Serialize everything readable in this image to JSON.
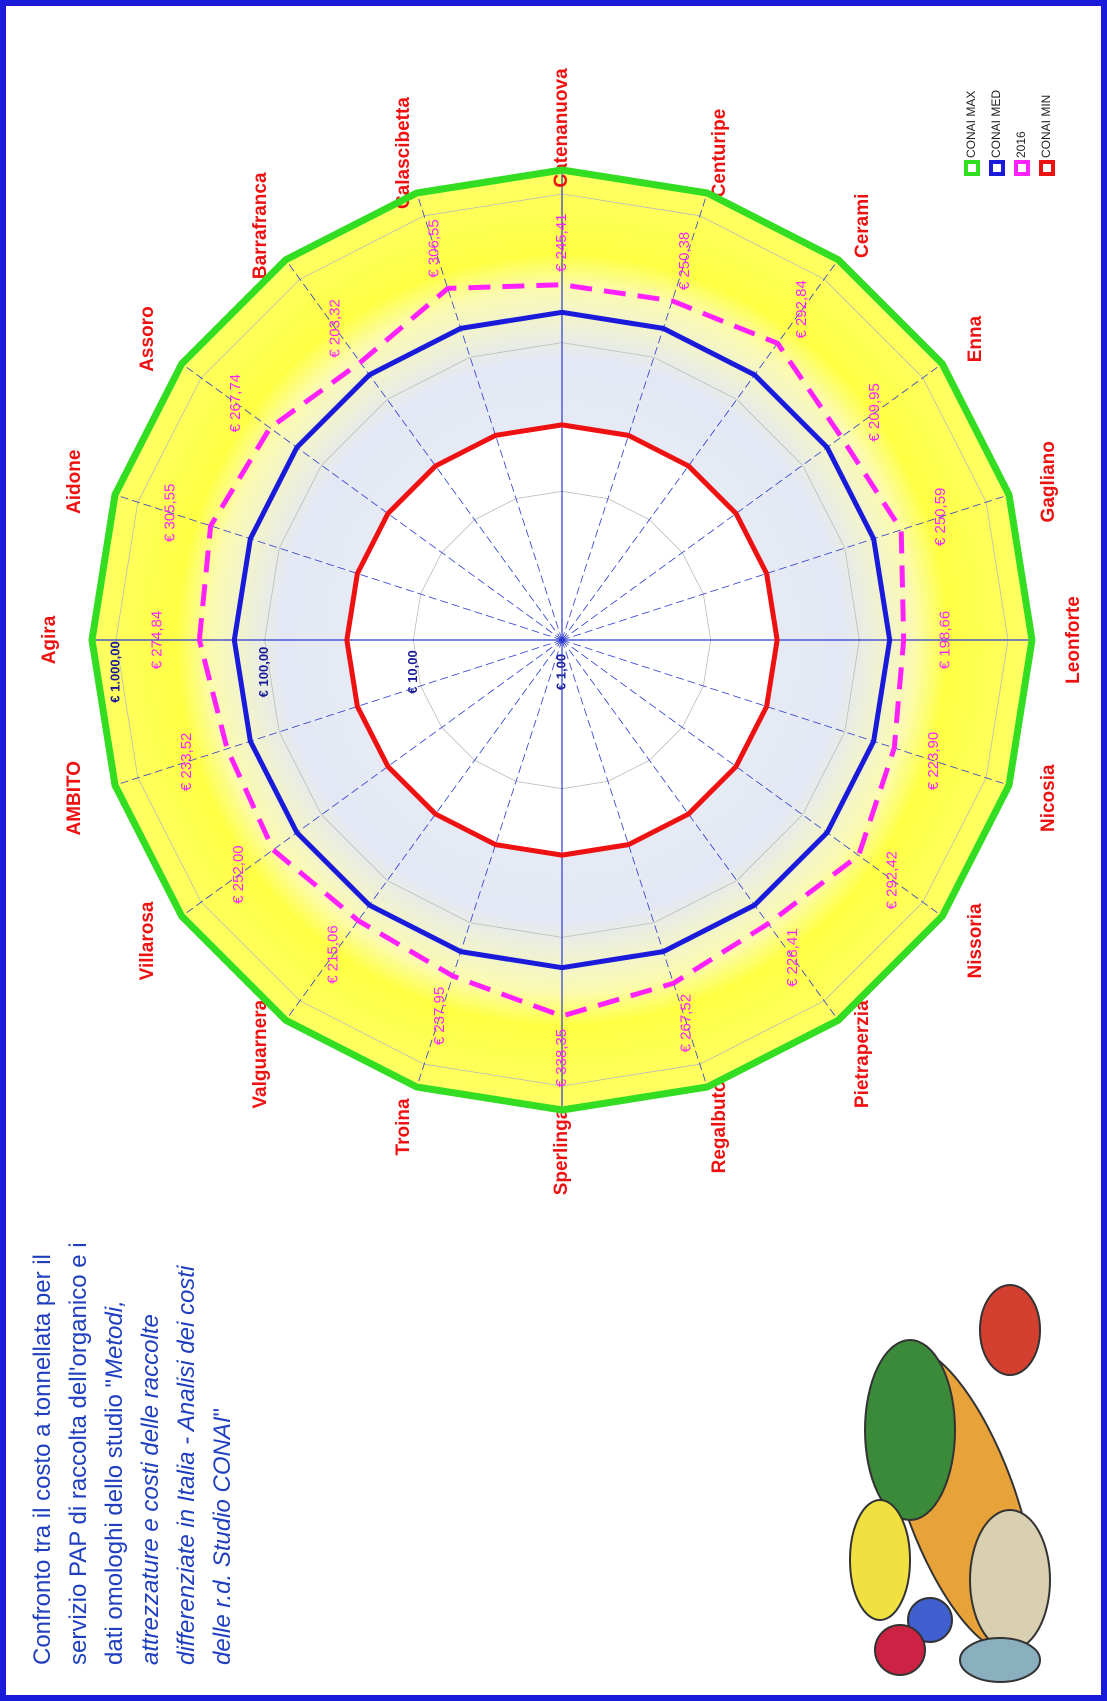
{
  "chart_data": {
    "type": "radar",
    "title_lines": [
      [
        {
          "text": "Confronto tra il costo a tonnellata per il",
          "italic": false
        }
      ],
      [
        {
          "text": "servizio PAP di raccolta  dell'organico e i",
          "italic": false
        }
      ],
      [
        {
          "text": "dati omologhi dello studio \"",
          "italic": false
        },
        {
          "text": "Metodi,",
          "italic": true
        }
      ],
      [
        {
          "text": "attrezzature e costi delle raccolte",
          "italic": true
        }
      ],
      [
        {
          "text": "differenziate in Italia - Analisi dei costi",
          "italic": true
        }
      ],
      [
        {
          "text": "delle r.d.  Studio CONAI",
          "italic": true
        },
        {
          "text": "\"",
          "italic": false
        }
      ]
    ],
    "categories": [
      "Agira",
      "Aidone",
      "Assoro",
      "Barrafranca",
      "Calascibetta",
      "Catenanuova",
      "Centuripe",
      "Cerami",
      "Enna",
      "Gagliano",
      "Leonforte",
      "Nicosia",
      "Nissoria",
      "Pietraperzia",
      "Regalbuto",
      "Sperlinga",
      "Troina",
      "Valguarnera",
      "Villarosa",
      "AMBITO"
    ],
    "log_scale": true,
    "ylim": [
      1,
      1450
    ],
    "yticks": [
      {
        "value": 1,
        "label": "€ 1,00"
      },
      {
        "value": 10,
        "label": "€ 10,00"
      },
      {
        "value": 100,
        "label": "€ 100,00"
      },
      {
        "value": 1000,
        "label": "€ 1.000,00"
      }
    ],
    "series": [
      {
        "name": "CONAI MAX",
        "color": "#33dd22",
        "dashed": false,
        "values": [
          1450,
          1450,
          1450,
          1450,
          1450,
          1450,
          1450,
          1450,
          1450,
          1450,
          1450,
          1450,
          1450,
          1450,
          1450,
          1450,
          1450,
          1450,
          1450,
          1450
        ]
      },
      {
        "name": "CONAI MED",
        "color": "#1a1adb",
        "dashed": false,
        "values": [
          160,
          160,
          160,
          160,
          160,
          160,
          160,
          160,
          160,
          160,
          160,
          160,
          160,
          160,
          160,
          160,
          160,
          160,
          160,
          160
        ]
      },
      {
        "name": "2016",
        "color": "#ff22ff",
        "dashed": true,
        "values": [
          274.84,
          305.55,
          267.74,
          203.32,
          306.55,
          245.41,
          250.38,
          292.84,
          209.95,
          250.59,
          198.66,
          223.9,
          292.42,
          228.41,
          267.52,
          338.35,
          237.95,
          215.06,
          252.0,
          233.52
        ],
        "value_labels": [
          "€ 274,84",
          "€ 305,55",
          "€ 267,74",
          "€ 203,32",
          "€ 306,55",
          "€ 245,41",
          "€ 250,38",
          "€ 292,84",
          "€ 209,95",
          "€ 250,59",
          "€ 198,66",
          "€ 223,90",
          "€ 292,42",
          "€ 228,41",
          "€ 267,52",
          "€ 338,35",
          "€ 237,95",
          "€ 215,06",
          "€ 252,00",
          "€ 233,52"
        ]
      },
      {
        "name": "CONAI MIN",
        "color": "#ee1111",
        "dashed": false,
        "values": [
          28,
          28,
          28,
          28,
          28,
          28,
          28,
          28,
          28,
          28,
          28,
          28,
          28,
          28,
          28,
          28,
          28,
          28,
          28,
          28
        ]
      }
    ]
  }
}
